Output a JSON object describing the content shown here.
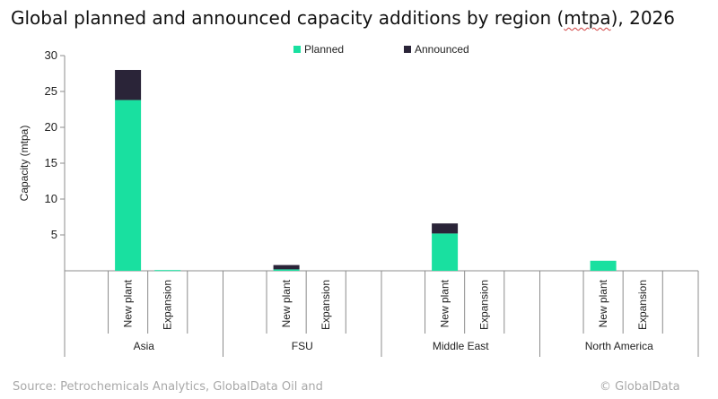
{
  "title_main": "Global planned and announced capacity additions by region (",
  "title_flag": "mtpa",
  "title_end": "), 2026",
  "footer": {
    "source": "Source: Petrochemicals Analytics, GlobalData Oil and",
    "copyright": "© GlobalData"
  },
  "colors": {
    "planned": "#19e0a0",
    "announced": "#2a2438",
    "axis": "#8c8c8c"
  },
  "chart_data": {
    "type": "bar",
    "stacked": true,
    "title": "Global planned and announced capacity additions by region (mtpa), 2026",
    "ylabel": "Capacity (mtpa)",
    "xlabel": "",
    "ylim": [
      0,
      30
    ],
    "yticks": [
      5,
      10,
      15,
      20,
      25,
      30
    ],
    "grid": false,
    "legend": "top-center",
    "groups": [
      "Asia",
      "FSU",
      "Middle East",
      "North America"
    ],
    "categories": [
      "New plant",
      "Expansion"
    ],
    "series": [
      {
        "name": "Planned",
        "values": [
          [
            23.8,
            0.1
          ],
          [
            0.2,
            0.0
          ],
          [
            5.2,
            0.0
          ],
          [
            1.4,
            0.0
          ]
        ]
      },
      {
        "name": "Announced",
        "values": [
          [
            4.2,
            0.0
          ],
          [
            0.6,
            0.0
          ],
          [
            1.4,
            0.0
          ],
          [
            0.0,
            0.0
          ]
        ]
      }
    ]
  }
}
